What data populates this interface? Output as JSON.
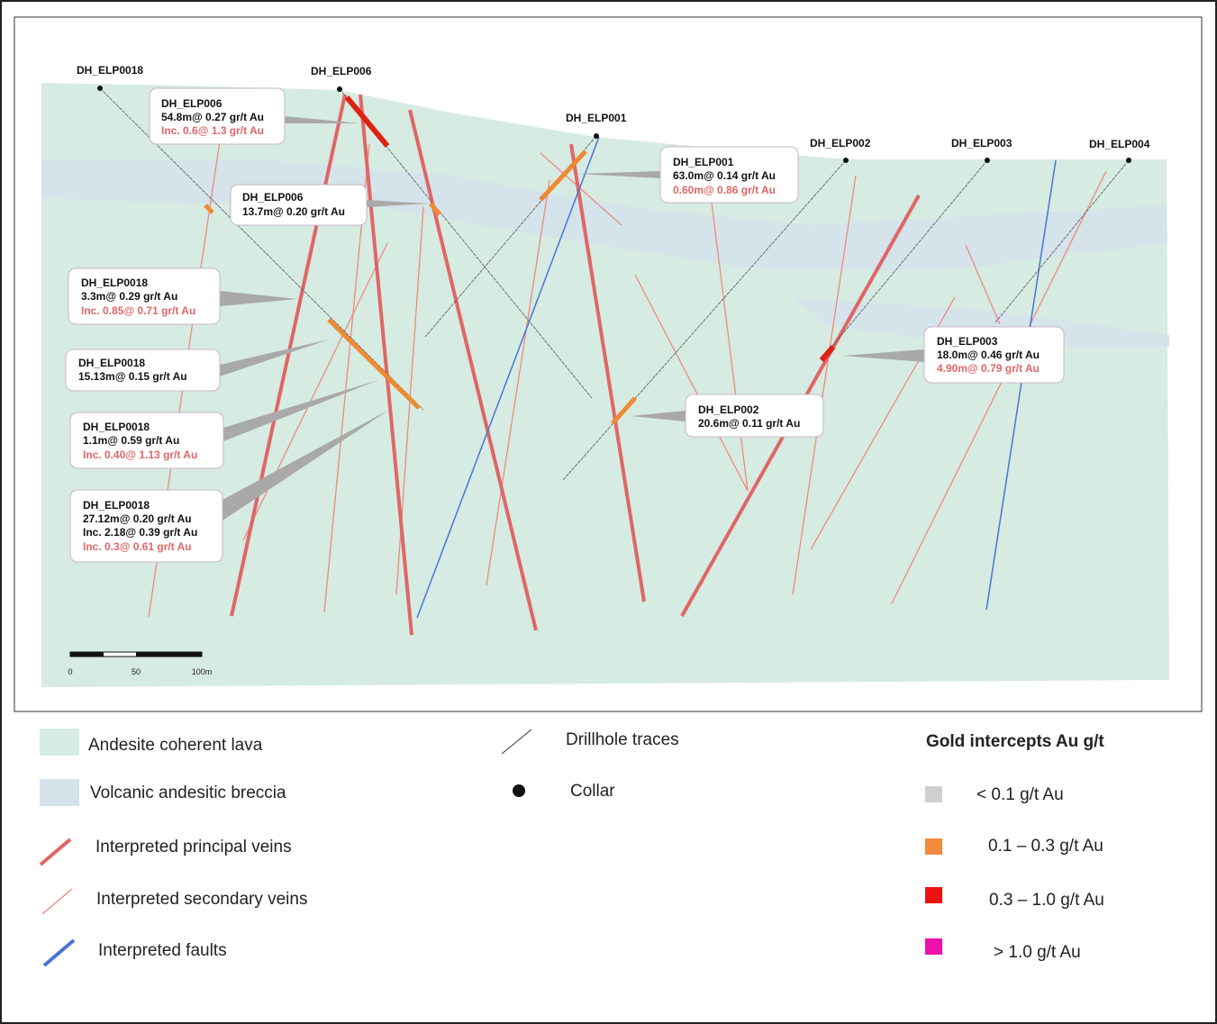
{
  "drillholes": [
    "DH_ELP0018",
    "DH_ELP006",
    "DH_ELP001",
    "DH_ELP002",
    "DH_ELP003",
    "DH_ELP004"
  ],
  "callouts": [
    [
      "DH_ELP006",
      "54.8m@ 0.27 gr/t Au",
      "Inc. 0.6@ 1.3 gr/t Au"
    ],
    [
      "DH_ELP006",
      "13.7m@ 0.20 gr/t Au"
    ],
    [
      "DH_ELP001",
      "63.0m@ 0.14 gr/t Au",
      "0.60m@ 0.86 gr/t Au"
    ],
    [
      "DH_ELP0018",
      "3.3m@ 0.29 gr/t Au",
      "Inc. 0.85@ 0.71 gr/t Au"
    ],
    [
      "DH_ELP0018",
      "15.13m@ 0.15 gr/t Au"
    ],
    [
      "DH_ELP0018",
      "1.1m@ 0.59 gr/t Au",
      "Inc. 0.40@ 1.13 gr/t Au"
    ],
    [
      "DH_ELP0018",
      "27.12m@ 0.20 gr/t Au",
      "Inc. 2.18@ 0.39 gr/t Au",
      "Inc. 0.3@ 0.61 gr/t Au"
    ],
    [
      "DH_ELP002",
      "20.6m@ 0.11 gr/t Au"
    ],
    [
      "DH_ELP003",
      "18.0m@ 0.46 gr/t Au",
      "4.90m@ 0.79 gr/t Au"
    ]
  ],
  "scale_bar": [
    "0",
    "50",
    "100m"
  ],
  "legend": {
    "units": [
      "Andesite coherent lava",
      "Volcanic andesitic breccia",
      "Interpreted principal veins",
      "Interpreted secondary veins",
      "Interpreted faults"
    ],
    "symbols": [
      "Drillhole traces",
      "Collar"
    ],
    "gold_title": "Gold intercepts Au g/t",
    "gold": [
      "< 0.1 g/t Au",
      "0.1 – 0.3 g/t Au",
      "0.3 – 1.0 g/t Au",
      "> 1.0 g/t Au"
    ]
  }
}
